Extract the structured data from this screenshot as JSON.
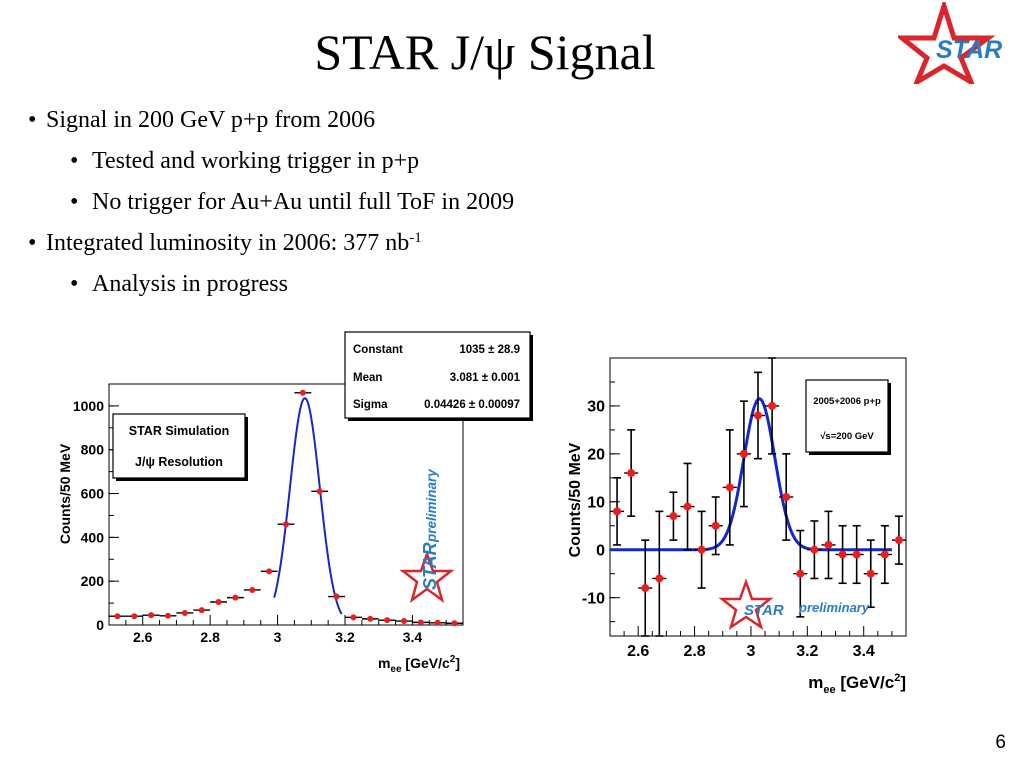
{
  "slide": {
    "title": "STAR J/ψ Signal",
    "page_number": "6",
    "logo_text": "STAR",
    "bullets": [
      {
        "level": 1,
        "text": "Signal in 200 GeV p+p from 2006"
      },
      {
        "level": 2,
        "text": "Tested and working trigger in p+p"
      },
      {
        "level": 2,
        "text": "No trigger for Au+Au until full ToF in 2009"
      },
      {
        "level": 1,
        "text": "Integrated luminosity in 2006: 377 nb",
        "sup": "-1"
      },
      {
        "level": 2,
        "text": "Analysis in progress"
      }
    ]
  },
  "colors": {
    "logo_red": "#d8262c",
    "logo_blue": "#2b7bc0",
    "fit_blue": "#1428c8",
    "point_red": "#ee1c1c"
  },
  "chart_data": [
    {
      "type": "scatter",
      "xlabel": "m_ee [GeV/c²]",
      "ylabel": "Counts/50 MeV",
      "xlim": [
        2.5,
        3.55
      ],
      "ylim": [
        0,
        1100
      ],
      "xticks": [
        "2.6",
        "2.8",
        "3",
        "3.2",
        "3.4"
      ],
      "yticks": [
        "0",
        "200",
        "400",
        "600",
        "800",
        "1000"
      ],
      "legend_box": [
        "STAR Simulation",
        "J/ψ Resolution"
      ],
      "stats_box": [
        {
          "label": "Constant",
          "value": "1035 ± 28.9"
        },
        {
          "label": "Mean",
          "value": "3.081 ± 0.001"
        },
        {
          "label": "Sigma",
          "value": "0.04426 ± 0.00097"
        }
      ],
      "preliminary_label": "preliminary",
      "logo_label": "STAR",
      "points": [
        {
          "x": 2.525,
          "y": 40
        },
        {
          "x": 2.575,
          "y": 40
        },
        {
          "x": 2.625,
          "y": 45
        },
        {
          "x": 2.675,
          "y": 42
        },
        {
          "x": 2.725,
          "y": 55
        },
        {
          "x": 2.775,
          "y": 68
        },
        {
          "x": 2.825,
          "y": 105
        },
        {
          "x": 2.875,
          "y": 125
        },
        {
          "x": 2.925,
          "y": 160
        },
        {
          "x": 2.975,
          "y": 245
        },
        {
          "x": 3.025,
          "y": 460
        },
        {
          "x": 3.075,
          "y": 1060
        },
        {
          "x": 3.125,
          "y": 610
        },
        {
          "x": 3.175,
          "y": 130
        },
        {
          "x": 3.225,
          "y": 35
        },
        {
          "x": 3.275,
          "y": 28
        },
        {
          "x": 3.325,
          "y": 22
        },
        {
          "x": 3.375,
          "y": 18
        },
        {
          "x": 3.425,
          "y": 12
        },
        {
          "x": 3.475,
          "y": 10
        },
        {
          "x": 3.525,
          "y": 8
        }
      ],
      "fit": {
        "constant": 1035,
        "mean": 3.081,
        "sigma": 0.04426,
        "xrange": [
          2.99,
          3.19
        ]
      }
    },
    {
      "type": "scatter",
      "xlabel": "m_ee [GeV/c²]",
      "ylabel": "Counts/50 MeV",
      "xlim": [
        2.5,
        3.55
      ],
      "ylim": [
        -18,
        40
      ],
      "xticks": [
        "2.6",
        "2.8",
        "3",
        "3.2",
        "3.4"
      ],
      "yticks": [
        "-10",
        "0",
        "10",
        "20",
        "30"
      ],
      "legend_box": [
        "2005+2006 p+p",
        "√s=200 GeV"
      ],
      "preliminary_label": "preliminary",
      "logo_label": "STAR",
      "points": [
        {
          "x": 2.525,
          "y": 8,
          "e": 7
        },
        {
          "x": 2.575,
          "y": 16,
          "e": 9
        },
        {
          "x": 2.625,
          "y": -8,
          "e": 10
        },
        {
          "x": 2.675,
          "y": -6,
          "e": 14
        },
        {
          "x": 2.725,
          "y": 7,
          "e": 5
        },
        {
          "x": 2.775,
          "y": 9,
          "e": 9
        },
        {
          "x": 2.825,
          "y": 0,
          "e": 8
        },
        {
          "x": 2.875,
          "y": 5,
          "e": 6
        },
        {
          "x": 2.925,
          "y": 13,
          "e": 12
        },
        {
          "x": 2.975,
          "y": 20,
          "e": 11
        },
        {
          "x": 3.025,
          "y": 28,
          "e": 9
        },
        {
          "x": 3.075,
          "y": 30,
          "e": 10
        },
        {
          "x": 3.125,
          "y": 11,
          "e": 9
        },
        {
          "x": 3.175,
          "y": -5,
          "e": 9
        },
        {
          "x": 3.225,
          "y": 0,
          "e": 6
        },
        {
          "x": 3.275,
          "y": 1,
          "e": 7
        },
        {
          "x": 3.325,
          "y": -1,
          "e": 6
        },
        {
          "x": 3.375,
          "y": -1,
          "e": 6
        },
        {
          "x": 3.425,
          "y": -5,
          "e": 7
        },
        {
          "x": 3.475,
          "y": -1,
          "e": 6
        },
        {
          "x": 3.525,
          "y": 2,
          "e": 5
        }
      ],
      "fit": {
        "constant": 31.5,
        "mean": 3.03,
        "sigma": 0.055,
        "xrange": [
          2.5,
          3.5
        ]
      }
    }
  ]
}
